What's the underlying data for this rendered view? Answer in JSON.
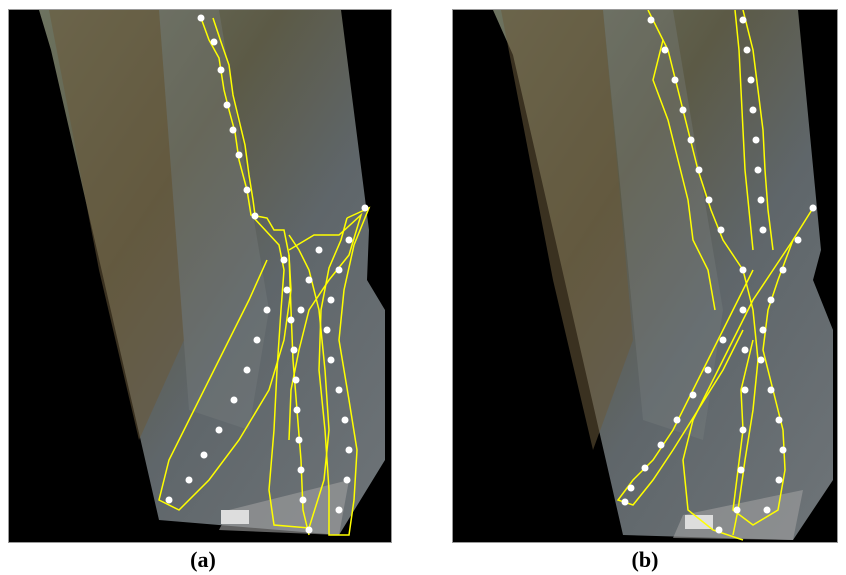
{
  "figure": {
    "panels": [
      {
        "id": "a",
        "caption": "(a)"
      },
      {
        "id": "b",
        "caption": "(b)"
      }
    ]
  },
  "colors": {
    "background": "#ffffff",
    "mask": "#000000",
    "outline": "#ffff00",
    "keypoint": "#ffffff"
  }
}
